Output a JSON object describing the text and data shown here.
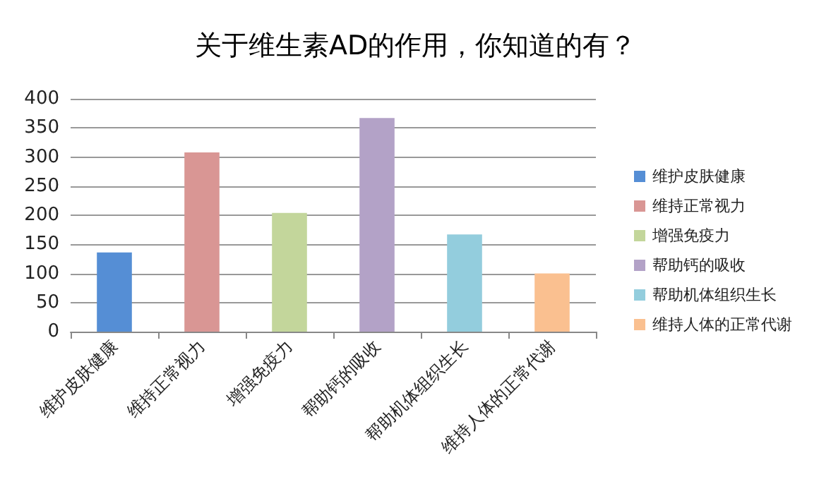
{
  "chart_data": {
    "type": "bar",
    "title": "关于维生素AD的作用，你知道的有？",
    "categories": [
      "维护皮肤健康",
      "维持正常视力",
      "增强免疫力",
      "帮助钙的吸收",
      "帮助机体组织生长",
      "维持人体的正常代谢"
    ],
    "stacked": true,
    "series": [
      {
        "name": "维护皮肤健康",
        "color": "#558ed5",
        "values": [
          136,
          null,
          null,
          null,
          null,
          null
        ]
      },
      {
        "name": "维持正常视力",
        "color": "#d99694",
        "values": [
          null,
          308,
          null,
          null,
          null,
          null
        ]
      },
      {
        "name": "增强免疫力",
        "color": "#c3d69b",
        "values": [
          null,
          null,
          204,
          null,
          null,
          null
        ]
      },
      {
        "name": "帮助钙的吸收",
        "color": "#b3a2c7",
        "values": [
          null,
          null,
          null,
          367,
          null,
          null
        ]
      },
      {
        "name": "帮助机体组织生长",
        "color": "#93cddd",
        "values": [
          null,
          null,
          null,
          null,
          167,
          null
        ]
      },
      {
        "name": "维持人体的正常代谢",
        "color": "#fac090",
        "values": [
          null,
          null,
          null,
          null,
          null,
          100
        ]
      }
    ],
    "ylim": [
      0,
      400
    ],
    "yticks": [
      0,
      50,
      100,
      150,
      200,
      250,
      300,
      350,
      400
    ],
    "grid": "y",
    "legend": "right"
  }
}
